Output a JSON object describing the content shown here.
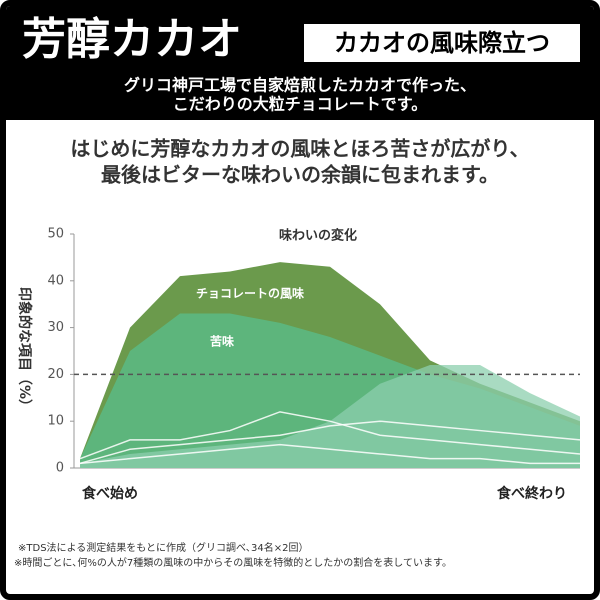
{
  "header": {
    "title": "芳醇カカオ",
    "badge": "カカオの風味際立つ",
    "lines": [
      "グリコ神戸工場で自家焙煎したカカオで作った、",
      "こだわりの大粒チョコレートです。"
    ]
  },
  "description": [
    "はじめに芳醇なカカオの風味とほろ苦さが広がり、",
    "最後はビターな味わいの余韻に包まれます。"
  ],
  "chart_data": {
    "type": "area",
    "title": "味わいの変化",
    "y_label": "印象的な項目（%）",
    "categories": [
      "食べ始め",
      null,
      null,
      null,
      null,
      null,
      null,
      null,
      null,
      null,
      "食べ終わり"
    ],
    "ylim": [
      0,
      50
    ],
    "yticks": [
      0,
      10,
      20,
      30,
      40,
      50
    ],
    "ref_line": 20,
    "series": [
      {
        "name": "チョコレートの風味",
        "color": "#6b9a4c",
        "values": [
          2,
          30,
          41,
          42,
          44,
          43,
          35,
          23,
          18,
          14,
          10
        ]
      },
      {
        "name": "苦味",
        "color": "#5db57c",
        "values": [
          2,
          25,
          33,
          33,
          31,
          28,
          24,
          20,
          17,
          13,
          9
        ]
      },
      {
        "color": "#8ccfae",
        "values": [
          1,
          3,
          4,
          5,
          6,
          10,
          18,
          22,
          22,
          16,
          11
        ]
      },
      {
        "color": "#ffffff",
        "values": [
          2,
          6,
          6,
          8,
          12,
          10,
          7,
          6,
          5,
          4,
          3
        ]
      },
      {
        "color": "#ffffff",
        "values": [
          1,
          4,
          5,
          6,
          7,
          9,
          10,
          9,
          8,
          7,
          6
        ]
      },
      {
        "color": "#ffffff",
        "values": [
          1,
          2,
          3,
          4,
          5,
          4,
          3,
          2,
          2,
          1,
          1
        ]
      }
    ]
  },
  "footnotes": [
    "※TDS法による測定結果をもとに作成（グリコ調べ､34名×2回）",
    "※時間ごとに､何%の人が7種類の風味の中からその風味を特徴的としたかの割合を表しています。"
  ]
}
